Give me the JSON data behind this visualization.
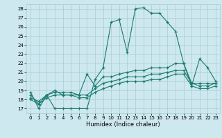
{
  "xlabel": "Humidex (Indice chaleur)",
  "xlim": [
    -0.5,
    23.5
  ],
  "ylim": [
    16.5,
    28.5
  ],
  "yticks": [
    17,
    18,
    19,
    20,
    21,
    22,
    23,
    24,
    25,
    26,
    27,
    28
  ],
  "xticks": [
    0,
    1,
    2,
    3,
    4,
    5,
    6,
    7,
    8,
    9,
    10,
    11,
    12,
    13,
    14,
    15,
    16,
    17,
    18,
    19,
    20,
    21,
    22,
    23
  ],
  "bg_color": "#cde8ee",
  "grid_color": "#aaccd4",
  "line_color": "#1a7a6e",
  "line1_y": [
    18.8,
    17.0,
    18.5,
    17.0,
    17.0,
    17.0,
    17.0,
    17.0,
    20.2,
    21.5,
    26.5,
    26.8,
    23.2,
    28.0,
    28.1,
    27.5,
    27.5,
    26.5,
    25.5,
    22.0,
    19.5,
    22.5,
    21.5,
    20.0
  ],
  "line2_y": [
    18.5,
    17.5,
    18.5,
    19.0,
    18.5,
    18.5,
    18.5,
    20.8,
    19.5,
    20.5,
    20.5,
    20.8,
    21.0,
    21.2,
    21.2,
    21.5,
    21.5,
    21.5,
    22.0,
    22.0,
    19.8,
    19.8,
    19.8,
    19.8
  ],
  "line3_y": [
    18.2,
    17.8,
    18.5,
    18.8,
    18.8,
    18.8,
    18.5,
    18.5,
    19.2,
    19.8,
    20.0,
    20.2,
    20.5,
    20.5,
    20.5,
    20.8,
    20.8,
    21.0,
    21.2,
    21.2,
    19.8,
    19.5,
    19.5,
    19.8
  ],
  "line4_y": [
    18.0,
    17.5,
    18.2,
    18.5,
    18.5,
    18.5,
    18.2,
    18.2,
    18.8,
    19.2,
    19.5,
    19.8,
    20.0,
    20.0,
    20.0,
    20.2,
    20.2,
    20.5,
    20.8,
    20.8,
    19.5,
    19.2,
    19.2,
    19.5
  ]
}
